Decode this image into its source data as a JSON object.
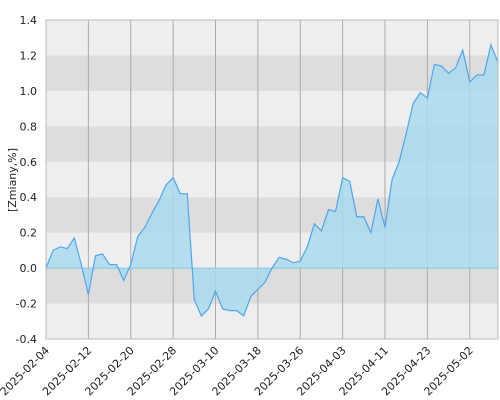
{
  "chart_data": {
    "type": "area",
    "y_label": "[Zmiany,%]",
    "categories": [
      "2025-02-04",
      null,
      null,
      null,
      null,
      null,
      "2025-02-12",
      null,
      null,
      null,
      null,
      null,
      "2025-02-20",
      null,
      null,
      null,
      null,
      null,
      "2025-02-28",
      null,
      null,
      null,
      null,
      null,
      "2025-03-10",
      null,
      null,
      null,
      null,
      null,
      "2025-03-18",
      null,
      null,
      null,
      null,
      null,
      "2025-03-26",
      null,
      null,
      null,
      null,
      null,
      "2025-04-03",
      null,
      null,
      null,
      null,
      null,
      "2025-04-11",
      null,
      null,
      null,
      null,
      null,
      "2025-04-23",
      null,
      null,
      null,
      null,
      null,
      "2025-05-02",
      null,
      null,
      null,
      null
    ],
    "values": [
      0.0,
      0.1,
      0.12,
      0.11,
      0.17,
      0.02,
      -0.15,
      0.07,
      0.08,
      0.02,
      0.02,
      -0.07,
      0.02,
      0.18,
      0.23,
      0.31,
      0.38,
      0.47,
      0.51,
      0.42,
      0.42,
      -0.18,
      -0.27,
      -0.23,
      -0.13,
      -0.23,
      -0.24,
      -0.24,
      -0.27,
      -0.16,
      -0.12,
      -0.08,
      0.0,
      0.06,
      0.05,
      0.03,
      0.04,
      0.12,
      0.25,
      0.21,
      0.33,
      0.32,
      0.51,
      0.49,
      0.29,
      0.29,
      0.2,
      0.39,
      0.23,
      0.5,
      0.6,
      0.76,
      0.93,
      0.99,
      0.96,
      1.15,
      1.14,
      1.1,
      1.13,
      1.23,
      1.05,
      1.09,
      1.09,
      1.26,
      1.16
    ],
    "color": "#4da6f0",
    "fill": "#a9d9ec",
    "ylim": [
      -0.4,
      1.4
    ],
    "yticks": [
      {
        "value": -0.4,
        "label": "-0.4"
      },
      {
        "value": -0.2,
        "label": "-0.2"
      },
      {
        "value": 0,
        "label": "0.0"
      },
      {
        "value": 0.2,
        "label": "0.2"
      },
      {
        "value": 0.4,
        "label": "0.4"
      },
      {
        "value": 0.6,
        "label": "0.6"
      },
      {
        "value": 0.8,
        "label": "0.8"
      },
      {
        "value": 1.0,
        "label": "1.0"
      },
      {
        "value": 1.2,
        "label": "1.2"
      },
      {
        "value": 1.4,
        "label": "1.4"
      }
    ],
    "grid": true
  }
}
